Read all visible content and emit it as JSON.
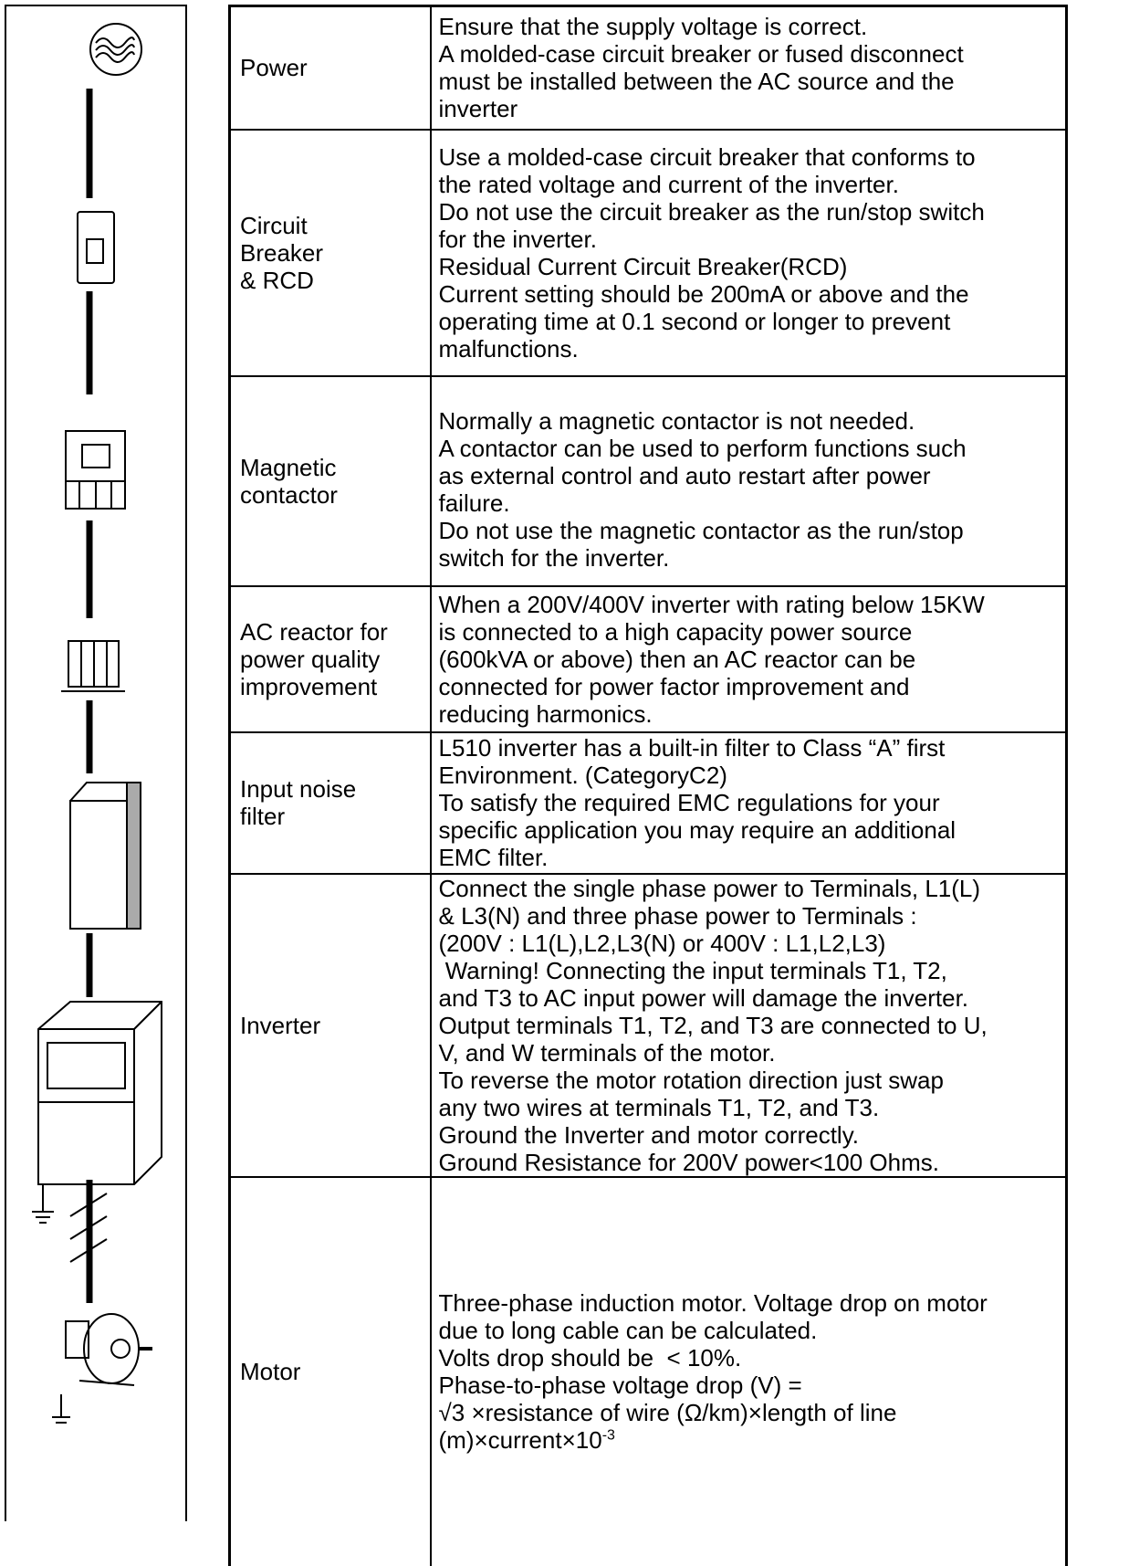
{
  "table": {
    "rows": [
      {
        "item": [
          "Power"
        ],
        "description": [
          "Ensure that the supply voltage is correct.",
          "A molded-case circuit breaker or fused disconnect",
          "must be installed between the AC source and the",
          "inverter"
        ]
      },
      {
        "item": [
          "Circuit",
          "Breaker",
          "& RCD"
        ],
        "description": [
          "Use a molded-case circuit breaker that conforms to",
          "the rated voltage and current of the inverter.",
          "Do not use the circuit breaker as the run/stop switch",
          "for the inverter.",
          "Residual Current Circuit Breaker(RCD)",
          "Current setting should be 200mA or above and the",
          "operating time at 0.1 second or longer to prevent",
          "malfunctions."
        ]
      },
      {
        "item": [
          "Magnetic",
          "contactor"
        ],
        "description": [
          "Normally a magnetic contactor is not needed.",
          "A contactor can be used to perform functions such",
          "as external control and auto restart after power",
          "failure.",
          "Do not use the magnetic contactor as the run/stop",
          "switch for the inverter."
        ]
      },
      {
        "item": [
          "AC reactor for",
          "power quality",
          "improvement"
        ],
        "description": [
          "When a 200V/400V inverter with rating below 15KW",
          "is connected to a high capacity power source",
          "(600kVA or above) then an AC reactor can be",
          "connected for power factor improvement and",
          "reducing harmonics."
        ]
      },
      {
        "item": [
          "Input noise",
          "filter"
        ],
        "description": [
          "L510 inverter has a built-in filter to Class “A” first",
          "Environment. (CategoryC2)",
          "To satisfy the required EMC regulations for your",
          "specific application you may require an additional",
          "EMC filter."
        ]
      },
      {
        "item": [
          "Inverter"
        ],
        "description": [
          "Connect the single phase power to Terminals, L1(L)",
          "& L3(N) and three phase power to Terminals :",
          "(200V : L1(L),L2,L3(N) or 400V : L1,L2,L3)",
          " Warning! Connecting the input terminals T1, T2,",
          "and T3 to AC input power will damage the inverter.",
          "Output terminals T1, T2, and T3 are connected to U,",
          "V, and W terminals of the motor.",
          "To reverse the motor rotation direction just swap",
          "any two wires at terminals T1, T2, and T3.",
          "Ground the Inverter and motor correctly.",
          "Ground Resistance for 200V power<100 Ohms."
        ]
      },
      {
        "item": [
          "Motor"
        ],
        "description": [
          "Three-phase induction motor. Voltage drop on motor",
          "due to long cable can be calculated.",
          "Volts drop should be  < 10%.",
          "Phase-to-phase voltage drop (V) =",
          "√3 ×resistance of wire (Ω/km)×length of line",
          {
            "text": "(m)×current×10",
            "sup": "-3"
          }
        ]
      }
    ]
  }
}
